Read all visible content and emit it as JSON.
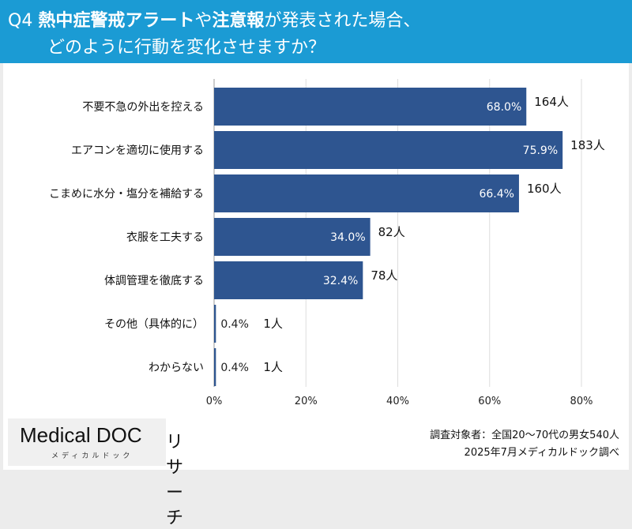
{
  "header": {
    "q": "Q4",
    "title_bold1": "熱中症警戒アラート",
    "title_mid1": "や",
    "title_bold2": "注意報",
    "title_mid2": "が発表された場合、",
    "title_line2": "どのように行動を変化させますか？"
  },
  "chart_data": {
    "type": "bar",
    "orientation": "horizontal",
    "categories": [
      "不要不急の外出を控える",
      "エアコンを適切に使用する",
      "こまめに水分・塩分を補給する",
      "衣服を工夫する",
      "体調管理を徹底する",
      "その他（具体的に）",
      "わからない"
    ],
    "values": [
      68.0,
      75.9,
      66.4,
      34.0,
      32.4,
      0.4,
      0.4
    ],
    "value_labels": [
      "68.0%",
      "75.9%",
      "66.4%",
      "34.0%",
      "32.4%",
      "0.4%",
      "0.4%"
    ],
    "count_labels": [
      "164人",
      "183人",
      "160人",
      "82人",
      "78人",
      "1人",
      "1人"
    ],
    "xlim": [
      0,
      80
    ],
    "x_ticks": [
      "0%",
      "20%",
      "40%",
      "60%",
      "80%"
    ],
    "grid": true,
    "bar_color": "#2e5590"
  },
  "footer": {
    "logo": "Medical DOC",
    "logo_sub": "リサーチ",
    "logo_kana": "メディカルドック",
    "source_line1": "調査対象者：全国20〜70代の男女540人",
    "source_line2": "2025年7月メディカルドック調べ"
  }
}
